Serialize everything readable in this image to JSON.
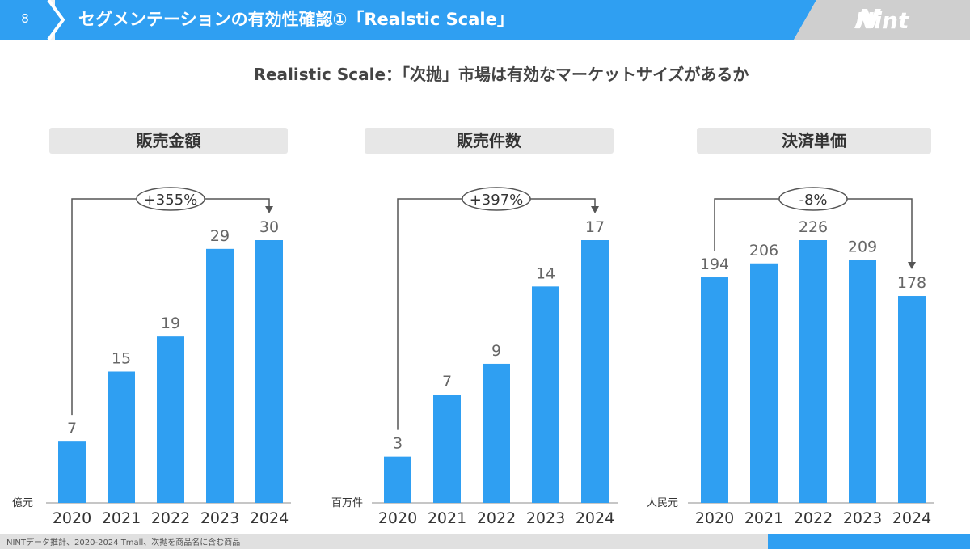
{
  "header": {
    "slide_number": "8",
    "title": "セグメンテーションの有効性確認①「Realstic Scale」",
    "logo_text": "Nint",
    "colors": {
      "bar": "#2f9ff2",
      "title_band": "#2f9ff2",
      "logo_band": "#cfcfcf"
    }
  },
  "subtitle": "Realistic Scale：「次抛」市場は有効なマーケットサイズがあるか",
  "footer": {
    "note": "NINTデータ推計、2020-2024 Tmall、次抛を商品名に含む商品"
  },
  "chart_data": [
    {
      "type": "bar",
      "title": "販売金額",
      "unit_label": "億元",
      "categories": [
        "2020",
        "2021",
        "2022",
        "2023",
        "2024"
      ],
      "values": [
        7,
        15,
        19,
        29,
        30
      ],
      "growth_label": "+355%",
      "growth_from": "2020",
      "growth_to": "2024"
    },
    {
      "type": "bar",
      "title": "販売件数",
      "unit_label": "百万件",
      "categories": [
        "2020",
        "2021",
        "2022",
        "2023",
        "2024"
      ],
      "values": [
        3,
        7,
        9,
        14,
        17
      ],
      "growth_label": "+397%",
      "growth_from": "2020",
      "growth_to": "2024"
    },
    {
      "type": "bar",
      "title": "決済単価",
      "unit_label": "人民元",
      "categories": [
        "2020",
        "2021",
        "2022",
        "2023",
        "2024"
      ],
      "values": [
        194,
        206,
        226,
        209,
        178
      ],
      "growth_label": "-8%",
      "growth_from": "2020",
      "growth_to": "2024"
    }
  ]
}
